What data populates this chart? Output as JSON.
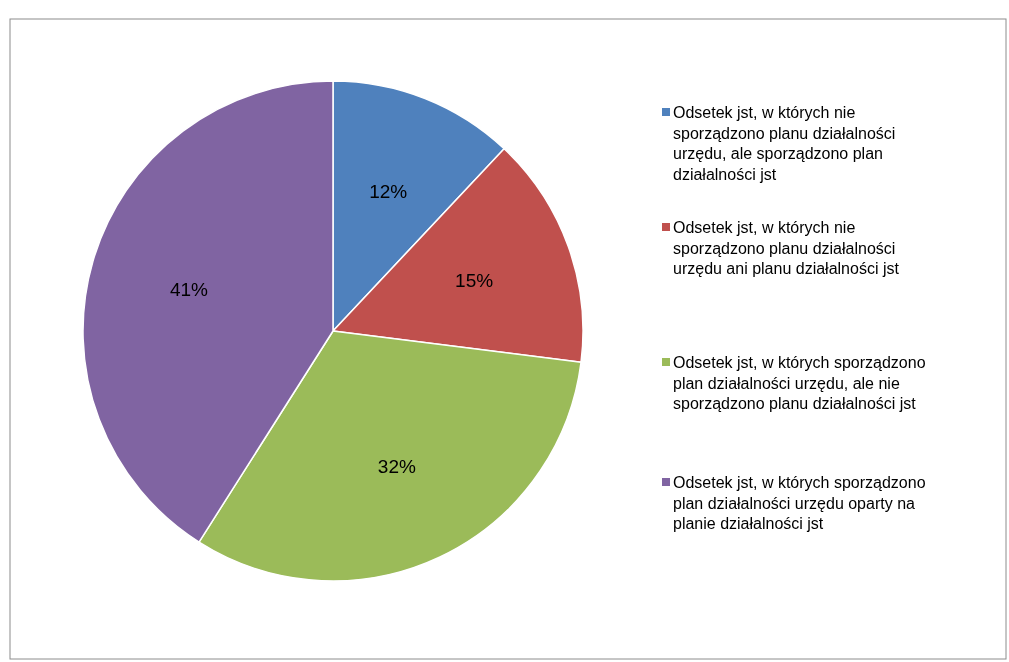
{
  "chart_data": {
    "type": "pie",
    "categories": [
      "Odsetek jst, w których nie sporządzono planu działalności urzędu, ale sporządzono plan działalności jst",
      "Odsetek jst, w których nie sporządzono planu działalności urzędu ani planu działalności jst",
      "Odsetek jst, w których sporządzono plan działalności urzędu, ale nie sporządzono planu działalności jst",
      "Odsetek jst, w których sporządzono plan działalności urzędu oparty na planie działalności jst"
    ],
    "values": [
      12,
      15,
      32,
      41
    ],
    "value_labels": [
      "12%",
      "15%",
      "32%",
      "41%"
    ],
    "colors": [
      "#4f81bd",
      "#c0504d",
      "#9bbb59",
      "#8064a2"
    ],
    "legend": "right"
  }
}
